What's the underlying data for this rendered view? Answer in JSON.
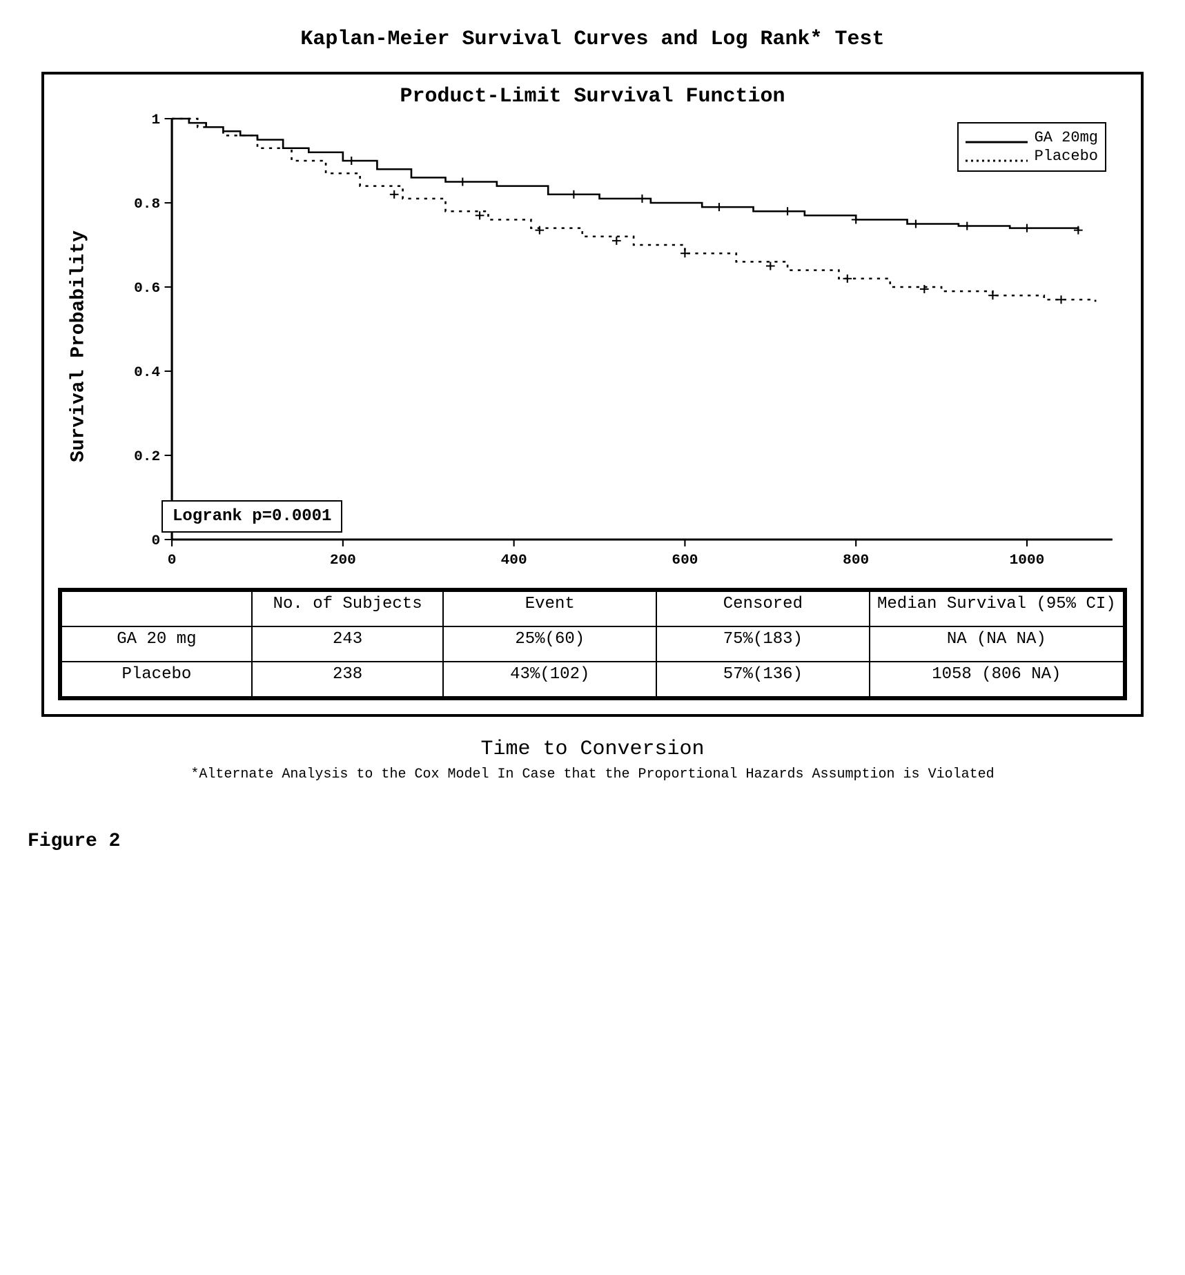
{
  "page_title": "Kaplan-Meier Survival Curves and Log Rank* Test",
  "chart": {
    "type": "survival_step",
    "title": "Product-Limit Survival Function",
    "ylabel": "Survival Probability",
    "xlabel_caption": "Time to Conversion",
    "xlim": [
      0,
      1100
    ],
    "ylim": [
      0,
      1
    ],
    "xticks": [
      0,
      200,
      400,
      600,
      800,
      1000
    ],
    "yticks": [
      0,
      0.2,
      0.4,
      0.6,
      0.8,
      1
    ],
    "ytick_labels": [
      "0",
      "0.2",
      "0.4",
      "0.6",
      "0.8",
      "1"
    ],
    "background_color": "#ffffff",
    "axis_color": "#000000",
    "line_width": 2.5,
    "tick_fontsize": 20,
    "title_fontsize": 30,
    "label_fontsize": 28,
    "logrank_text": "Logrank p=0.0001",
    "legend": {
      "items": [
        {
          "label": "GA 20mg",
          "style": "solid",
          "color": "#000000"
        },
        {
          "label": "Placebo",
          "style": "dotted",
          "color": "#000000"
        }
      ]
    },
    "series": [
      {
        "name": "GA 20mg",
        "style": "solid",
        "color": "#000000",
        "points": [
          [
            0,
            1.0
          ],
          [
            20,
            0.99
          ],
          [
            40,
            0.98
          ],
          [
            60,
            0.97
          ],
          [
            80,
            0.96
          ],
          [
            100,
            0.95
          ],
          [
            130,
            0.93
          ],
          [
            160,
            0.92
          ],
          [
            200,
            0.9
          ],
          [
            240,
            0.88
          ],
          [
            280,
            0.86
          ],
          [
            320,
            0.85
          ],
          [
            380,
            0.84
          ],
          [
            440,
            0.82
          ],
          [
            500,
            0.81
          ],
          [
            560,
            0.8
          ],
          [
            620,
            0.79
          ],
          [
            680,
            0.78
          ],
          [
            740,
            0.77
          ],
          [
            800,
            0.76
          ],
          [
            860,
            0.75
          ],
          [
            920,
            0.745
          ],
          [
            980,
            0.74
          ],
          [
            1060,
            0.735
          ]
        ],
        "censor_marks": [
          [
            210,
            0.9
          ],
          [
            340,
            0.85
          ],
          [
            470,
            0.82
          ],
          [
            550,
            0.81
          ],
          [
            640,
            0.79
          ],
          [
            720,
            0.78
          ],
          [
            800,
            0.76
          ],
          [
            870,
            0.75
          ],
          [
            930,
            0.745
          ],
          [
            1000,
            0.74
          ],
          [
            1060,
            0.735
          ]
        ]
      },
      {
        "name": "Placebo",
        "style": "dotted",
        "color": "#000000",
        "points": [
          [
            0,
            1.0
          ],
          [
            30,
            0.98
          ],
          [
            60,
            0.96
          ],
          [
            100,
            0.93
          ],
          [
            140,
            0.9
          ],
          [
            180,
            0.87
          ],
          [
            220,
            0.84
          ],
          [
            270,
            0.81
          ],
          [
            320,
            0.78
          ],
          [
            370,
            0.76
          ],
          [
            420,
            0.74
          ],
          [
            480,
            0.72
          ],
          [
            540,
            0.7
          ],
          [
            600,
            0.68
          ],
          [
            660,
            0.66
          ],
          [
            720,
            0.64
          ],
          [
            780,
            0.62
          ],
          [
            840,
            0.6
          ],
          [
            900,
            0.59
          ],
          [
            960,
            0.58
          ],
          [
            1020,
            0.57
          ],
          [
            1080,
            0.565
          ]
        ],
        "censor_marks": [
          [
            260,
            0.82
          ],
          [
            360,
            0.77
          ],
          [
            430,
            0.735
          ],
          [
            520,
            0.71
          ],
          [
            600,
            0.68
          ],
          [
            700,
            0.65
          ],
          [
            790,
            0.62
          ],
          [
            880,
            0.595
          ],
          [
            960,
            0.58
          ],
          [
            1040,
            0.57
          ]
        ]
      }
    ]
  },
  "table": {
    "columns": [
      "",
      "No. of Subjects",
      "Event",
      "Censored",
      "Median Survival (95% CI)"
    ],
    "rows": [
      [
        "GA 20 mg",
        "243",
        "25%(60)",
        "75%(183)",
        "NA (NA NA)"
      ],
      [
        "Placebo",
        "238",
        "43%(102)",
        "57%(136)",
        "1058 (806 NA)"
      ]
    ],
    "col_widths_pct": [
      18,
      18,
      20,
      20,
      24
    ]
  },
  "footnote": "*Alternate Analysis to the Cox Model In Case that the Proportional Hazards Assumption is Violated",
  "figure_label": "Figure 2"
}
